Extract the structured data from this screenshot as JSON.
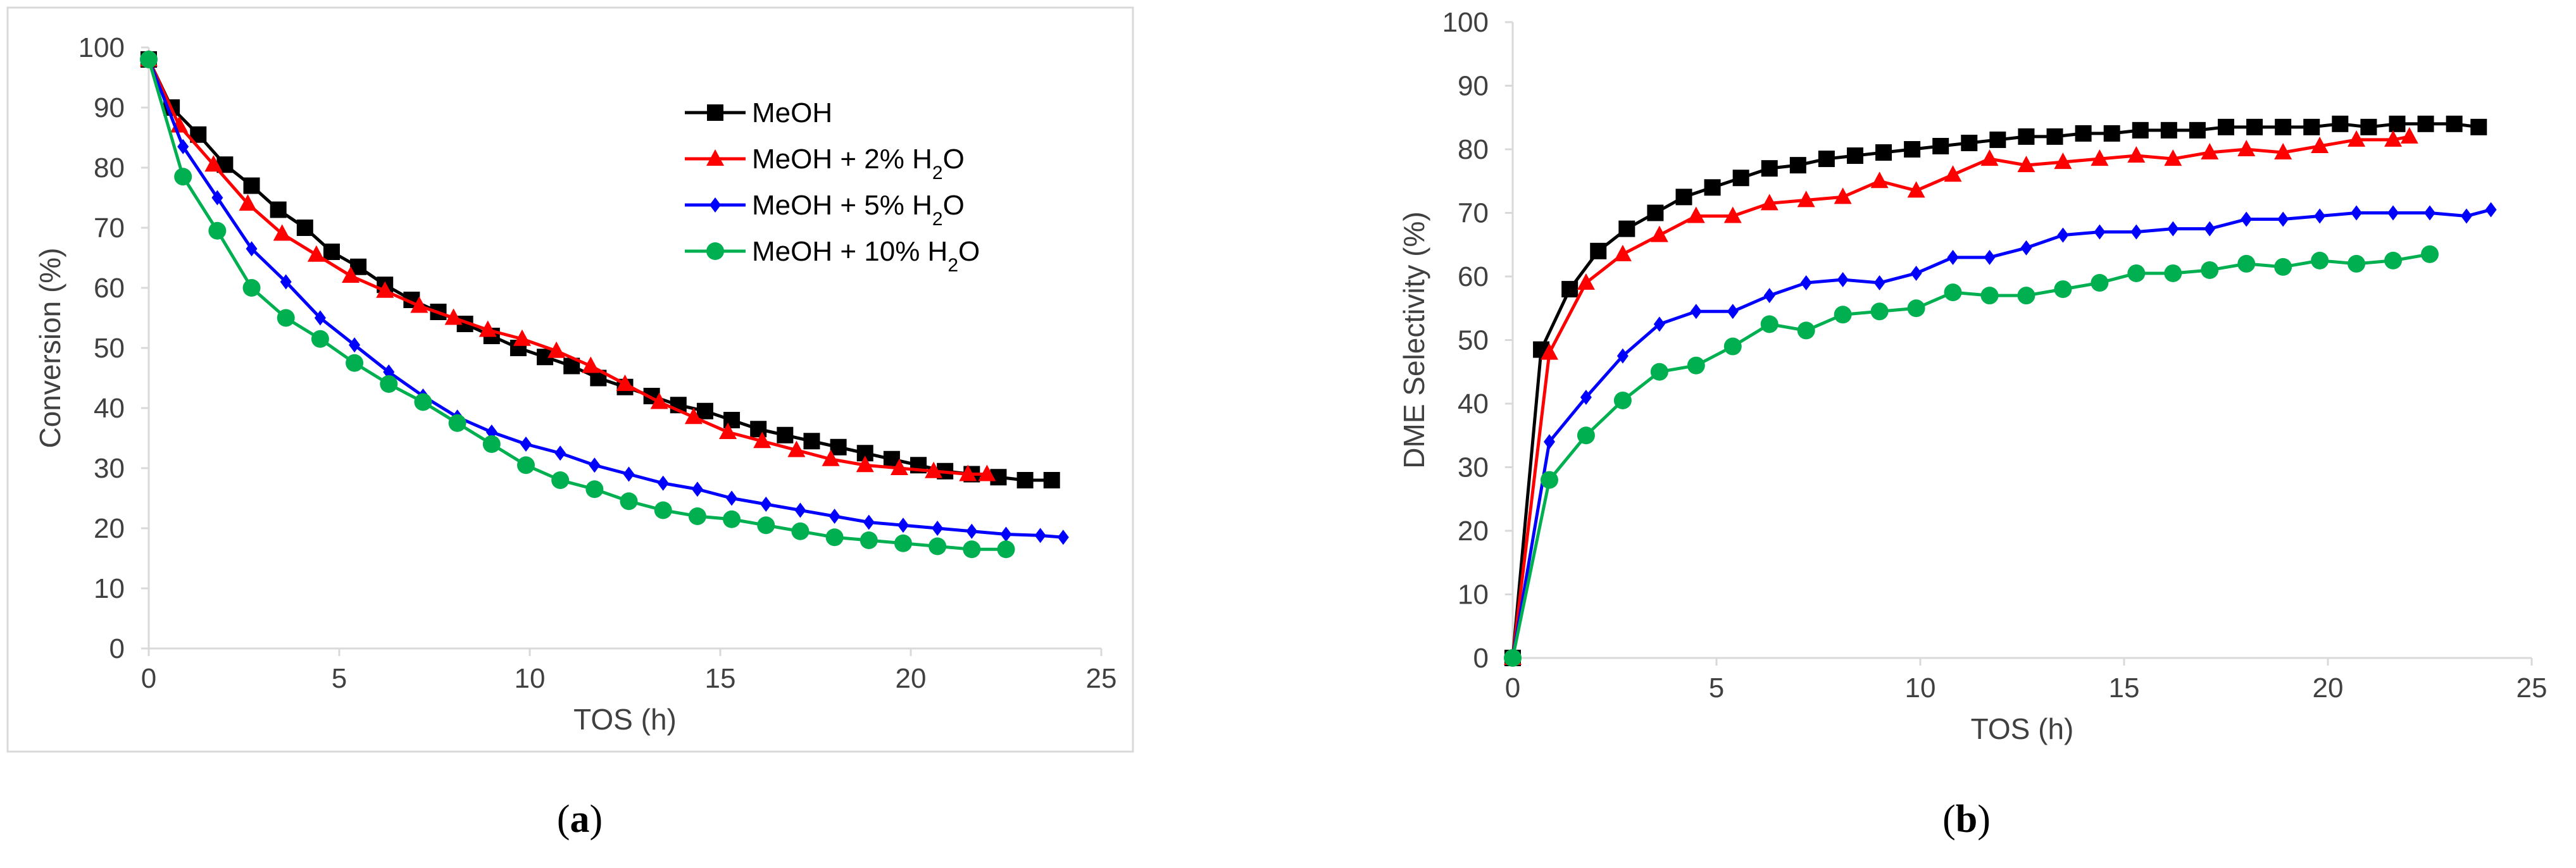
{
  "colors": {
    "MeOH": "#000000",
    "MeOH + 2% H2O": "#ff0000",
    "MeOH + 5% H2O": "#0000ff",
    "MeOH + 10% H2O": "#00b050",
    "axis": "#d9d9d9",
    "tick_text": "#404040"
  },
  "chart_data": [
    {
      "type": "line",
      "panel_label": {
        "open": "(",
        "letter": "a",
        "close": ")"
      },
      "title": "",
      "xlabel": "TOS (h)",
      "ylabel": "Conversion (%)",
      "xlim": [
        0,
        25
      ],
      "ylim": [
        0,
        100
      ],
      "xticks": [
        0,
        5,
        10,
        15,
        20,
        25
      ],
      "yticks": [
        0,
        10,
        20,
        30,
        40,
        50,
        60,
        70,
        80,
        90,
        100
      ],
      "grid": false,
      "legend_position": "top-right",
      "series": [
        {
          "name": "MeOH",
          "legend_main": "MeOH",
          "legend_sub": "",
          "legend_tail": "",
          "marker": "square",
          "x": [
            0,
            0.6,
            1.3,
            2.0,
            2.7,
            3.4,
            4.1,
            4.8,
            5.5,
            6.2,
            6.9,
            7.6,
            8.3,
            9.0,
            9.7,
            10.4,
            11.1,
            11.8,
            12.5,
            13.2,
            13.9,
            14.6,
            15.3,
            16.0,
            16.7,
            17.4,
            18.1,
            18.8,
            19.5,
            20.2,
            20.9,
            21.6,
            22.3,
            23.0,
            23.7
          ],
          "y": [
            98,
            90,
            85.5,
            80.5,
            77,
            73,
            70,
            66,
            63.5,
            60.5,
            58,
            56,
            54,
            52,
            50,
            48.5,
            47,
            45,
            43.5,
            42,
            40.5,
            39.5,
            38,
            36.5,
            35.5,
            34.5,
            33.5,
            32.5,
            31.5,
            30.5,
            29.5,
            29,
            28.5,
            28,
            28
          ]
        },
        {
          "name": "MeOH + 2% H2O",
          "legend_main": "MeOH + 2% H",
          "legend_sub": "2",
          "legend_tail": "O",
          "marker": "triangle",
          "x": [
            0,
            0.8,
            1.7,
            2.6,
            3.5,
            4.4,
            5.3,
            6.2,
            7.1,
            8.0,
            8.9,
            9.8,
            10.7,
            11.6,
            12.5,
            13.4,
            14.3,
            15.2,
            16.1,
            17.0,
            17.9,
            18.8,
            19.7,
            20.6,
            21.5,
            22.0
          ],
          "y": [
            98,
            87,
            80.5,
            74,
            69,
            65.5,
            62,
            59.5,
            57,
            55,
            53,
            51.5,
            49.5,
            47,
            44,
            41,
            38.5,
            36,
            34.5,
            33,
            31.5,
            30.5,
            30,
            29.5,
            29,
            29
          ]
        },
        {
          "name": "MeOH + 5% H2O",
          "legend_main": "MeOH + 5% H",
          "legend_sub": "2",
          "legend_tail": "O",
          "marker": "diamond",
          "x": [
            0,
            0.9,
            1.8,
            2.7,
            3.6,
            4.5,
            5.4,
            6.3,
            7.2,
            8.1,
            9.0,
            9.9,
            10.8,
            11.7,
            12.6,
            13.5,
            14.4,
            15.3,
            16.2,
            17.1,
            18.0,
            18.9,
            19.8,
            20.7,
            21.6,
            22.5,
            23.4,
            24.0
          ],
          "y": [
            98,
            83.5,
            75,
            66.5,
            61,
            55,
            50.5,
            46,
            42,
            38.5,
            36,
            34,
            32.5,
            30.5,
            29,
            27.5,
            26.5,
            25,
            24,
            23,
            22,
            21,
            20.5,
            20,
            19.5,
            19,
            18.8,
            18.5
          ]
        },
        {
          "name": "MeOH + 10% H2O",
          "legend_main": "MeOH + 10% H",
          "legend_sub": "2",
          "legend_tail": "O",
          "marker": "circle",
          "x": [
            0,
            0.9,
            1.8,
            2.7,
            3.6,
            4.5,
            5.4,
            6.3,
            7.2,
            8.1,
            9.0,
            9.9,
            10.8,
            11.7,
            12.6,
            13.5,
            14.4,
            15.3,
            16.2,
            17.1,
            18.0,
            18.9,
            19.8,
            20.7,
            21.6,
            22.5
          ],
          "y": [
            98,
            78.5,
            69.5,
            60,
            55,
            51.5,
            47.5,
            44,
            41,
            37.5,
            34,
            30.5,
            28,
            26.5,
            24.5,
            23,
            22,
            21.5,
            20.5,
            19.5,
            18.5,
            18,
            17.5,
            17,
            16.5,
            16.5
          ]
        }
      ]
    },
    {
      "type": "line",
      "panel_label": {
        "open": "(",
        "letter": "b",
        "close": ")"
      },
      "title": "",
      "xlabel": "TOS (h)",
      "ylabel": "DME Selectivity (%)",
      "xlim": [
        0,
        25
      ],
      "ylim": [
        0,
        100
      ],
      "xticks": [
        0,
        5,
        10,
        15,
        20,
        25
      ],
      "yticks": [
        0,
        10,
        20,
        30,
        40,
        50,
        60,
        70,
        80,
        90,
        100
      ],
      "grid": false,
      "legend_position": "none",
      "series": [
        {
          "name": "MeOH",
          "marker": "square",
          "x": [
            0,
            0.7,
            1.4,
            2.1,
            2.8,
            3.5,
            4.2,
            4.9,
            5.6,
            6.3,
            7.0,
            7.7,
            8.4,
            9.1,
            9.8,
            10.5,
            11.2,
            11.9,
            12.6,
            13.3,
            14.0,
            14.7,
            15.4,
            16.1,
            16.8,
            17.5,
            18.2,
            18.9,
            19.6,
            20.3,
            21.0,
            21.7,
            22.4,
            23.1,
            23.7
          ],
          "y": [
            0,
            48.5,
            58,
            64,
            67.5,
            70,
            72.5,
            74,
            75.5,
            77,
            77.5,
            78.5,
            79,
            79.5,
            80,
            80.5,
            81,
            81.5,
            82,
            82,
            82.5,
            82.5,
            83,
            83,
            83,
            83.5,
            83.5,
            83.5,
            83.5,
            84,
            83.5,
            84,
            84,
            84,
            83.5
          ]
        },
        {
          "name": "MeOH + 2% H2O",
          "marker": "triangle",
          "x": [
            0,
            0.9,
            1.8,
            2.7,
            3.6,
            4.5,
            5.4,
            6.3,
            7.2,
            8.1,
            9.0,
            9.9,
            10.8,
            11.7,
            12.6,
            13.5,
            14.4,
            15.3,
            16.2,
            17.1,
            18.0,
            18.9,
            19.8,
            20.7,
            21.6,
            22.0
          ],
          "y": [
            0,
            48,
            59,
            63.5,
            66.5,
            69.5,
            69.5,
            71.5,
            72,
            72.5,
            75,
            73.5,
            76,
            78.5,
            77.5,
            78,
            78.5,
            79,
            78.5,
            79.5,
            80,
            79.5,
            80.5,
            81.5,
            81.5,
            82
          ]
        },
        {
          "name": "MeOH + 5% H2O",
          "marker": "diamond",
          "x": [
            0,
            0.9,
            1.8,
            2.7,
            3.6,
            4.5,
            5.4,
            6.3,
            7.2,
            8.1,
            9.0,
            9.9,
            10.8,
            11.7,
            12.6,
            13.5,
            14.4,
            15.3,
            16.2,
            17.1,
            18.0,
            18.9,
            19.8,
            20.7,
            21.6,
            22.5,
            23.4,
            24.0
          ],
          "y": [
            0,
            34,
            41,
            47.5,
            52.5,
            54.5,
            54.5,
            57,
            59,
            59.5,
            59,
            60.5,
            63,
            63,
            64.5,
            66.5,
            67,
            67,
            67.5,
            67.5,
            69,
            69,
            69.5,
            70,
            70,
            70,
            69.5,
            70.5
          ]
        },
        {
          "name": "MeOH + 10% H2O",
          "marker": "circle",
          "x": [
            0,
            0.9,
            1.8,
            2.7,
            3.6,
            4.5,
            5.4,
            6.3,
            7.2,
            8.1,
            9.0,
            9.9,
            10.8,
            11.7,
            12.6,
            13.5,
            14.4,
            15.3,
            16.2,
            17.1,
            18.0,
            18.9,
            19.8,
            20.7,
            21.6,
            22.5
          ],
          "y": [
            0,
            28,
            35,
            40.5,
            45,
            46,
            49,
            52.5,
            51.5,
            54,
            54.5,
            55,
            57.5,
            57,
            57,
            58,
            59,
            60.5,
            60.5,
            61,
            62,
            61.5,
            62.5,
            62,
            62.5,
            63.5
          ]
        }
      ]
    }
  ]
}
